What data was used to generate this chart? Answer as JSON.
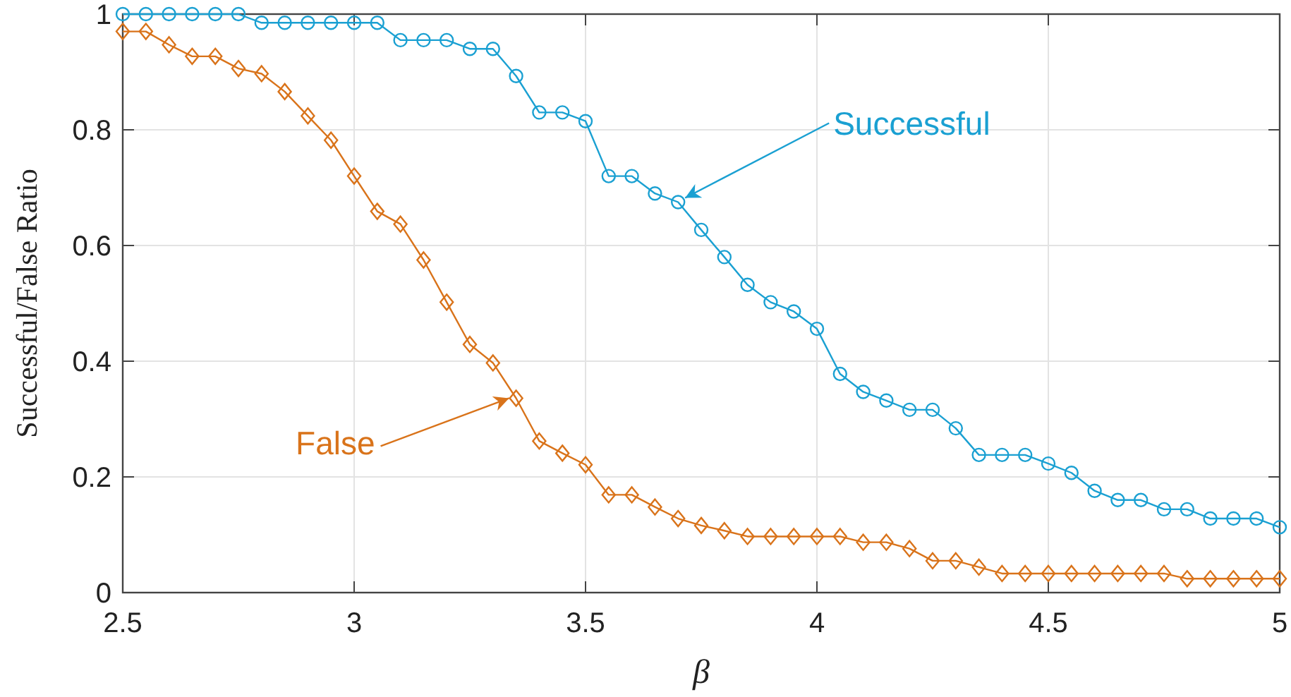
{
  "chart_data": {
    "type": "line",
    "xlabel": "β",
    "ylabel": "Successful/False Ratio",
    "x": [
      2.5,
      2.55,
      2.6,
      2.65,
      2.7,
      2.75,
      2.8,
      2.85,
      2.9,
      2.95,
      3,
      3.05,
      3.1,
      3.15,
      3.2,
      3.25,
      3.3,
      3.35,
      3.4,
      3.45,
      3.5,
      3.55,
      3.6,
      3.65,
      3.7,
      3.75,
      3.8,
      3.85,
      3.9,
      3.95,
      4,
      4.05,
      4.1,
      4.15,
      4.2,
      4.25,
      4.3,
      4.35,
      4.4,
      4.45,
      4.5,
      4.55,
      4.6,
      4.65,
      4.7,
      4.75,
      4.8,
      4.85,
      4.9,
      4.95,
      5
    ],
    "series": [
      {
        "color": "#1aa0d2",
        "marker": "circle",
        "values": [
          1,
          1,
          1,
          1,
          1,
          1,
          0.985,
          0.985,
          0.985,
          0.985,
          0.985,
          0.985,
          0.955,
          0.955,
          0.955,
          0.94,
          0.94,
          0.893,
          0.83,
          0.83,
          0.815,
          0.72,
          0.72,
          0.69,
          0.675,
          0.627,
          0.58,
          0.532,
          0.502,
          0.486,
          0.456,
          0.378,
          0.347,
          0.332,
          0.316,
          0.316,
          0.284,
          0.238,
          0.238,
          0.238,
          0.223,
          0.207,
          0.176,
          0.16,
          0.16,
          0.144,
          0.144,
          0.128,
          0.128,
          0.128,
          0.113
        ]
      },
      {
        "color": "#d9731a",
        "marker": "diamond",
        "values": [
          0.97,
          0.97,
          0.947,
          0.927,
          0.927,
          0.906,
          0.897,
          0.866,
          0.824,
          0.782,
          0.72,
          0.659,
          0.637,
          0.575,
          0.502,
          0.429,
          0.397,
          0.336,
          0.262,
          0.241,
          0.221,
          0.169,
          0.169,
          0.148,
          0.128,
          0.116,
          0.107,
          0.097,
          0.097,
          0.097,
          0.097,
          0.097,
          0.087,
          0.087,
          0.076,
          0.055,
          0.055,
          0.044,
          0.033,
          0.033,
          0.033,
          0.033,
          0.033,
          0.033,
          0.033,
          0.033,
          0.024,
          0.024,
          0.024,
          0.024,
          0.024
        ]
      }
    ],
    "annotations": [
      {
        "text": "Successful",
        "x": 3.7,
        "y": 0.675
      },
      {
        "text": "False",
        "x": 3.35,
        "y": 0.336
      }
    ],
    "xlim": [
      2.5,
      5
    ],
    "xticks": [
      2.5,
      3,
      3.5,
      4,
      4.5,
      5
    ],
    "ylim": [
      0,
      1
    ],
    "yticks": [
      0,
      0.2,
      0.4,
      0.6,
      0.8,
      1
    ],
    "grid": true,
    "line_style": "solid"
  }
}
